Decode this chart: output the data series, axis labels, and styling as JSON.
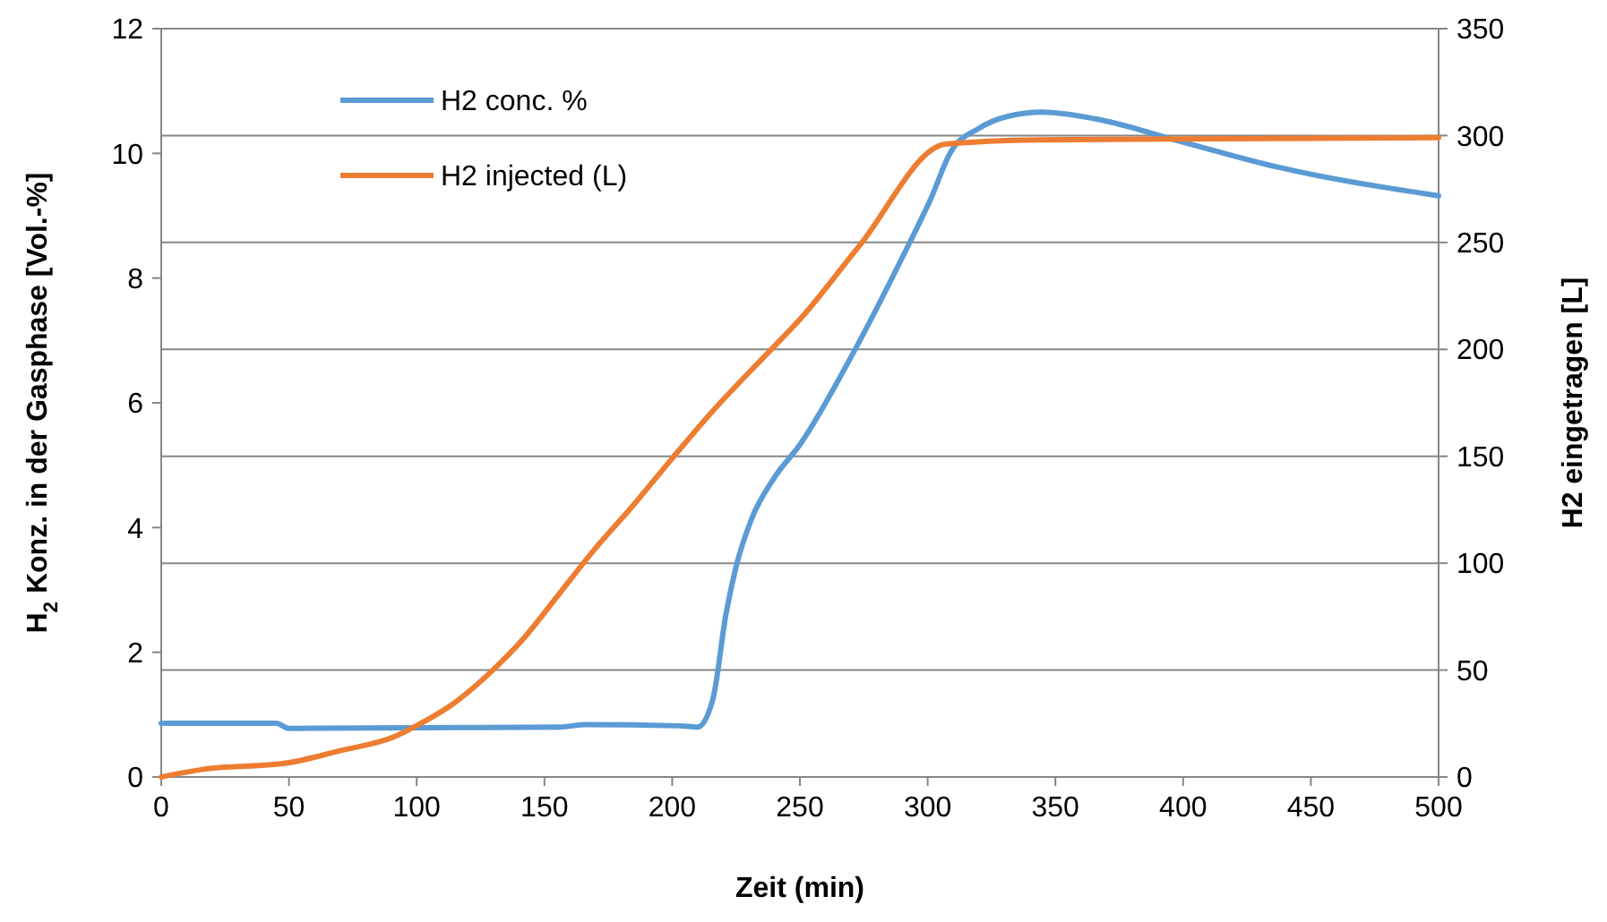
{
  "chart_data": {
    "type": "line",
    "xlabel": "Zeit (min)",
    "ylabel": "H$_{2}$ Konz. in der Gasphase [Vol.-%]",
    "y2label": "H2 eingetragen [L]",
    "xlim": [
      0,
      500
    ],
    "xticks": [
      0,
      50,
      100,
      150,
      200,
      250,
      300,
      350,
      400,
      450,
      500
    ],
    "ylim": [
      0,
      12
    ],
    "yticks": [
      0,
      2,
      4,
      6,
      8,
      10,
      12
    ],
    "y2lim": [
      0,
      350
    ],
    "y2ticks": [
      0,
      50,
      100,
      150,
      200,
      250,
      300,
      350
    ],
    "grid": "y2",
    "legend": "top left",
    "marker": "none",
    "line_style": "solid",
    "series": [
      {
        "name": "H2 conc. %",
        "color": "#5b9bd5",
        "x": [
          0,
          45,
          50,
          100,
          156,
          166,
          203,
          210,
          216,
          221,
          225,
          231,
          240,
          250,
          271,
          292,
          301,
          309,
          320,
          331,
          345,
          366,
          400,
          437,
          500
        ],
        "values": [
          0.86,
          0.86,
          0.78,
          0.79,
          0.8,
          0.84,
          0.82,
          0.8,
          1.26,
          2.6,
          3.37,
          4.13,
          4.8,
          5.33,
          6.81,
          8.49,
          9.25,
          10.02,
          10.4,
          10.59,
          10.66,
          10.55,
          10.18,
          9.78,
          9.32
        ]
      },
      {
        "name": "H2 injected (L)",
        "color": "#ed7d31",
        "axis": "y2",
        "x": [
          0,
          16,
          50,
          70,
          91,
          100,
          114,
          128,
          142,
          156,
          170,
          184,
          200,
          215,
          238,
          250,
          273,
          307,
          344,
          500
        ],
        "values": [
          0,
          3.5,
          6.7,
          12.3,
          18.7,
          24,
          34,
          48,
          65,
          86,
          107,
          126,
          149,
          170,
          199,
          214,
          248,
          296,
          298,
          299
        ]
      }
    ]
  }
}
